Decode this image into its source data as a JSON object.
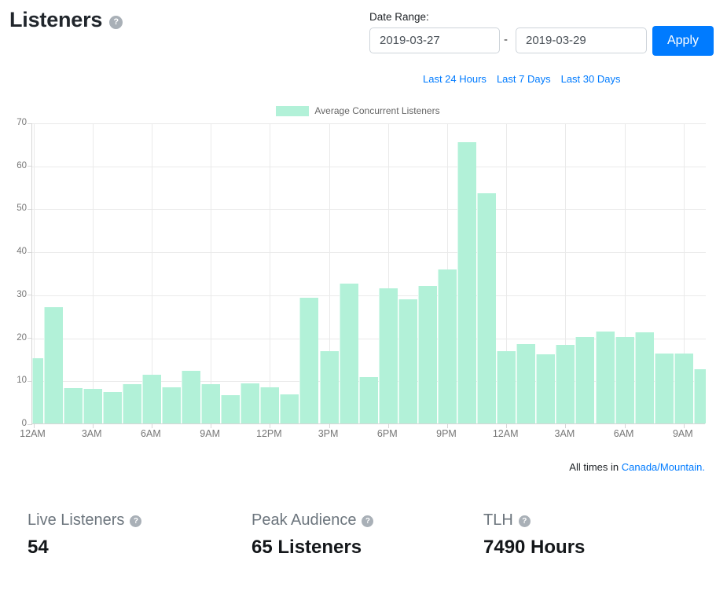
{
  "page": {
    "title": "Listeners"
  },
  "icons": {
    "help_glyph": "?"
  },
  "date_range": {
    "label": "Date Range:",
    "start": "2019-03-27",
    "separator": "-",
    "end": "2019-03-29",
    "apply_label": "Apply"
  },
  "quick_links": [
    "Last 24 Hours",
    "Last 7 Days",
    "Last 30 Days"
  ],
  "chart_data": {
    "type": "bar",
    "legend": "Average Concurrent Listeners",
    "title": "",
    "xlabel": "",
    "ylabel": "",
    "ylim": [
      0,
      70
    ],
    "y_ticks": [
      0,
      10,
      20,
      30,
      40,
      50,
      60,
      70
    ],
    "x_tick_labels": [
      "12AM",
      "3AM",
      "6AM",
      "9AM",
      "12PM",
      "3PM",
      "6PM",
      "9PM",
      "12AM",
      "3AM",
      "6AM",
      "9AM"
    ],
    "x_tick_every": 3,
    "grid": true,
    "legend_position": "top-center",
    "bar_color": "#b2f1d8",
    "values": [
      15.2,
      27.1,
      8.2,
      8.1,
      7.4,
      9.1,
      11.4,
      8.4,
      12.2,
      9.1,
      6.5,
      9.3,
      8.4,
      6.7,
      29.2,
      16.8,
      32.5,
      10.7,
      31.4,
      28.9,
      32.0,
      35.8,
      65.5,
      53.5,
      16.9,
      18.4,
      16.0,
      18.3,
      20.1,
      21.4,
      20.1,
      21.2,
      16.2,
      16.2,
      12.7
    ]
  },
  "timezone": {
    "prefix": "All times in ",
    "link": "Canada/Mountain."
  },
  "stats": [
    {
      "label": "Live Listeners",
      "value": "54"
    },
    {
      "label": "Peak Audience",
      "value": "65 Listeners"
    },
    {
      "label": "TLH",
      "value": "7490 Hours"
    }
  ],
  "colors": {
    "accent": "#007bff",
    "bar": "#b2f1d8",
    "muted_text": "#6c757d",
    "axis_text": "#777777"
  }
}
